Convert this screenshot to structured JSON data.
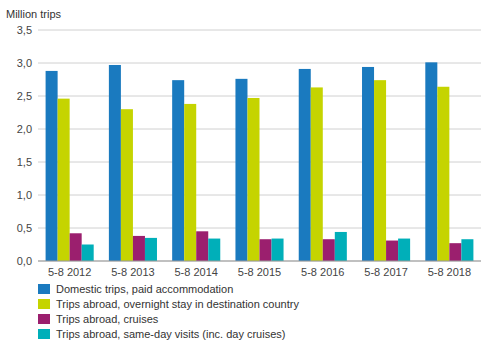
{
  "chart_data": {
    "type": "bar",
    "y_label": "Million trips",
    "categories": [
      "5-8 2012",
      "5-8 2013",
      "5-8 2014",
      "5-8 2015",
      "5-8 2016",
      "5-8 2017",
      "5-8 2018"
    ],
    "series": [
      {
        "name": "Domestic trips, paid accommodation",
        "color": "#1a7abf",
        "values": [
          2.88,
          2.97,
          2.74,
          2.76,
          2.91,
          2.94,
          3.01
        ]
      },
      {
        "name": "Trips abroad, overnight stay in destination country",
        "color": "#c5d400",
        "values": [
          2.46,
          2.3,
          2.38,
          2.47,
          2.63,
          2.74,
          2.64
        ]
      },
      {
        "name": "Trips abroad, cruises",
        "color": "#9b1f6e",
        "values": [
          0.42,
          0.38,
          0.45,
          0.33,
          0.33,
          0.31,
          0.27
        ]
      },
      {
        "name": "Trips abroad, same-day visits (inc. day cruises)",
        "color": "#00afb9",
        "values": [
          0.25,
          0.35,
          0.34,
          0.34,
          0.44,
          0.34,
          0.33
        ]
      }
    ],
    "ylim": [
      0,
      3.5
    ],
    "yticks": [
      {
        "value": 0.0,
        "label": "0,0"
      },
      {
        "value": 0.5,
        "label": "0,5"
      },
      {
        "value": 1.0,
        "label": "1,0"
      },
      {
        "value": 1.5,
        "label": "1,5"
      },
      {
        "value": 2.0,
        "label": "2,0"
      },
      {
        "value": 2.5,
        "label": "2,5"
      },
      {
        "value": 3.0,
        "label": "3,0"
      },
      {
        "value": 3.5,
        "label": "3,5"
      }
    ],
    "grid": true,
    "legend": "bottom"
  }
}
